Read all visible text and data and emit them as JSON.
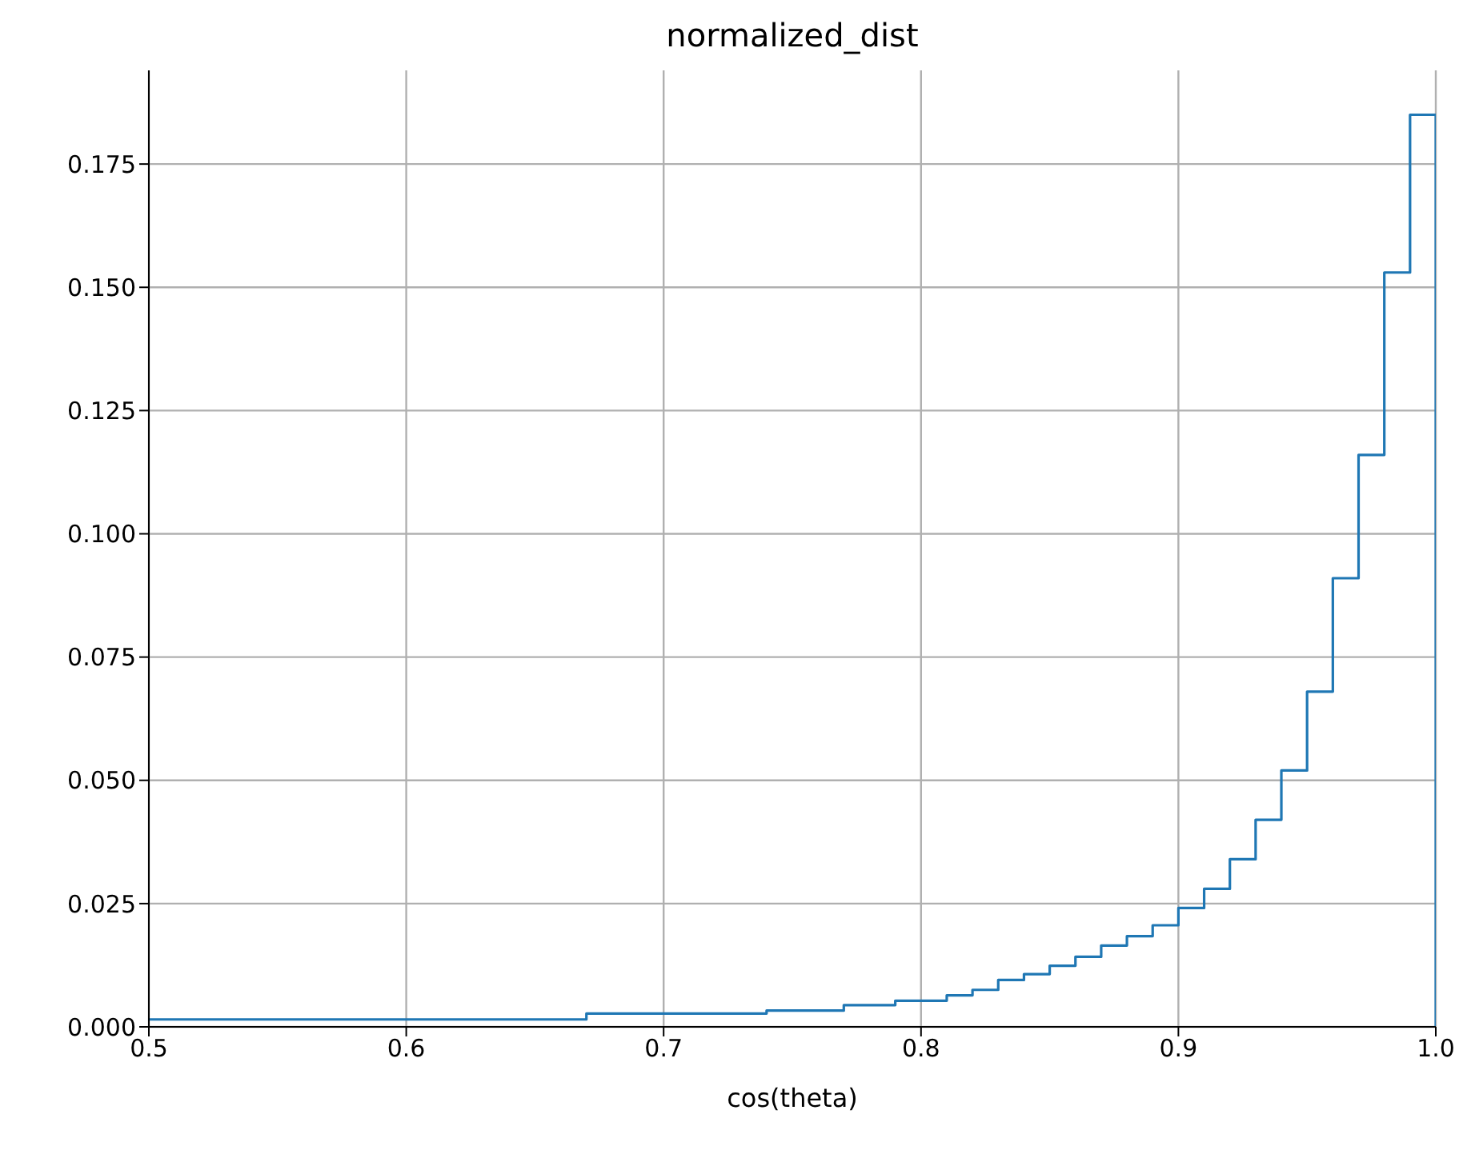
{
  "chart_data": {
    "type": "histogram",
    "title": "normalized_dist",
    "xlabel": "cos(theta)",
    "bins": [
      0.5,
      0.51,
      0.52,
      0.53,
      0.54,
      0.55,
      0.56,
      0.57,
      0.58,
      0.59,
      0.6,
      0.61,
      0.62,
      0.63,
      0.64,
      0.65,
      0.66,
      0.67,
      0.68,
      0.69,
      0.7,
      0.71,
      0.72,
      0.73,
      0.74,
      0.75,
      0.76,
      0.77,
      0.78,
      0.79,
      0.8,
      0.81,
      0.82,
      0.83,
      0.84,
      0.85,
      0.86,
      0.87,
      0.88,
      0.89,
      0.9,
      0.91,
      0.92,
      0.93,
      0.94,
      0.95,
      0.96,
      0.97,
      0.98,
      0.99,
      1.0
    ],
    "values": [
      0.0015,
      0.0015,
      0.0015,
      0.0015,
      0.0015,
      0.0015,
      0.0015,
      0.0015,
      0.0015,
      0.0015,
      0.0015,
      0.0015,
      0.0015,
      0.0015,
      0.0015,
      0.0015,
      0.0015,
      0.0027,
      0.0027,
      0.0027,
      0.0027,
      0.0027,
      0.0027,
      0.0027,
      0.0033,
      0.0033,
      0.0033,
      0.0044,
      0.0044,
      0.0053,
      0.0053,
      0.0064,
      0.0075,
      0.0095,
      0.0107,
      0.0124,
      0.0142,
      0.0165,
      0.0184,
      0.0206,
      0.0241,
      0.028,
      0.034,
      0.042,
      0.052,
      0.068,
      0.091,
      0.116,
      0.153,
      0.185
    ],
    "color": "#1f77b4",
    "xlim": [
      0.5,
      1.0
    ],
    "xticks": [
      0.5,
      0.6,
      0.7,
      0.8,
      0.9,
      {
        "value": 1.0,
        "label": "1.0"
      }
    ],
    "ylim": [
      0,
      0.194
    ],
    "yticks": [
      {
        "value": 0,
        "label": "0.000"
      },
      {
        "value": 0.025,
        "label": "0.025"
      },
      {
        "value": 0.05,
        "label": "0.050"
      },
      {
        "value": 0.075,
        "label": "0.075"
      },
      {
        "value": 0.1,
        "label": "0.100"
      },
      {
        "value": 0.125,
        "label": "0.125"
      },
      {
        "value": 0.15,
        "label": "0.150"
      },
      {
        "value": 0.175,
        "label": "0.175"
      }
    ],
    "grid": true
  }
}
